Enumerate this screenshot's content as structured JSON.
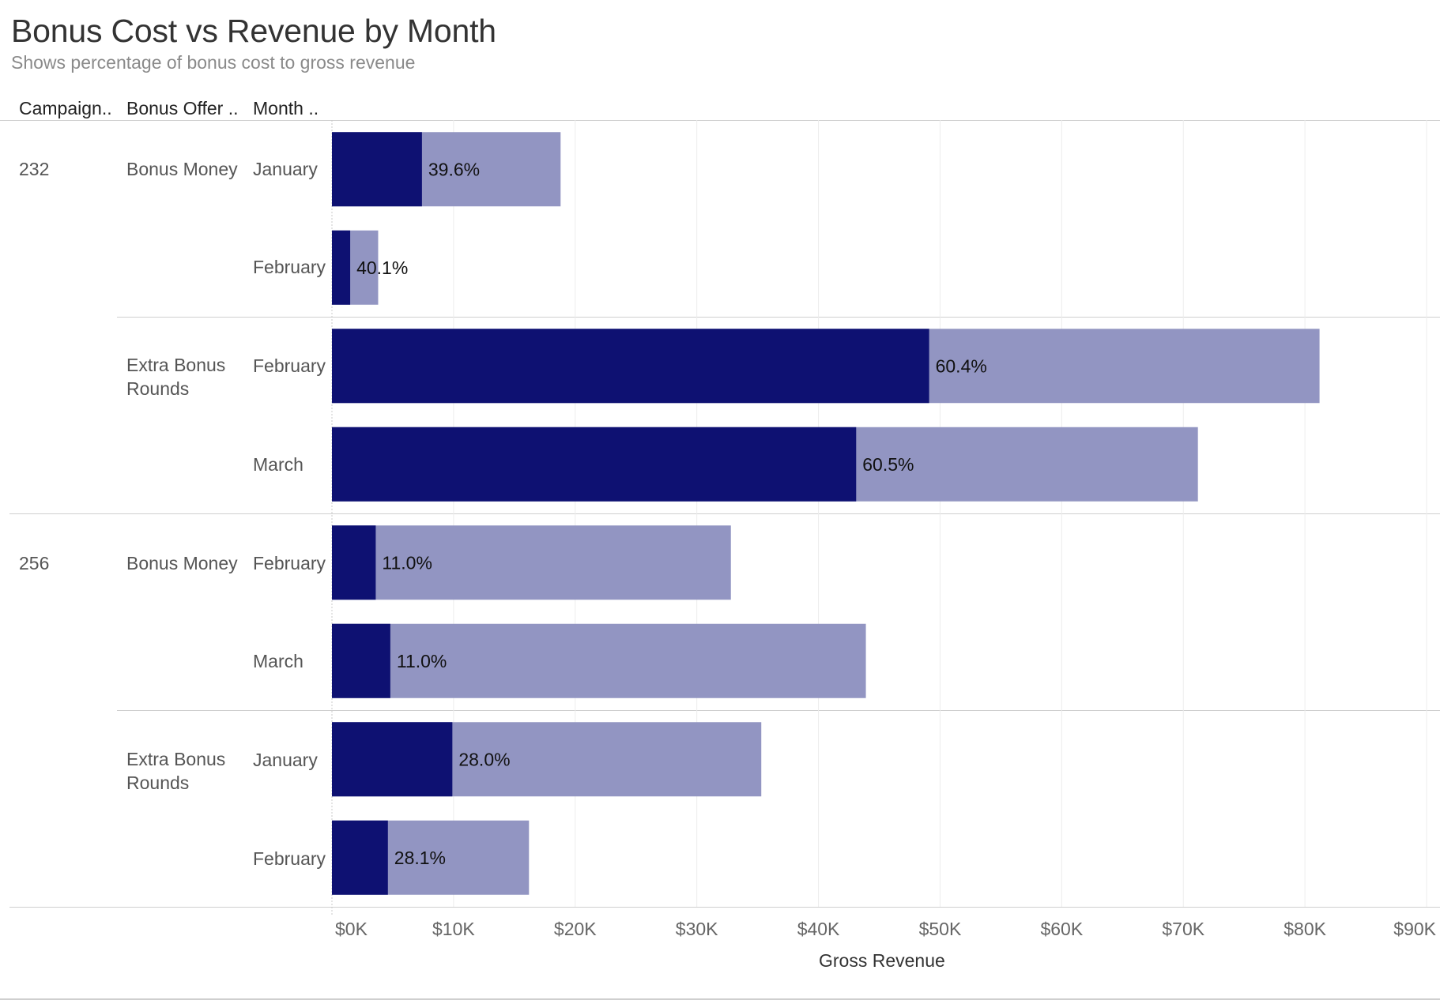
{
  "title": "Bonus Cost vs Revenue by Month",
  "subtitle": "Shows percentage of bonus cost to gross revenue",
  "headers": {
    "campaign": "Campaign..",
    "bonus_offer": "Bonus Offer ..",
    "month": "Month .."
  },
  "colors": {
    "bonus_cost": "#0e1172",
    "gross_revenue": "#9295c2",
    "grid": "#ececec",
    "rule": "#cfcfcf"
  },
  "chart_data": {
    "type": "bar",
    "orientation": "horizontal",
    "xlabel": "Gross Revenue",
    "xlim": [
      0,
      90000
    ],
    "x_ticks": [
      0,
      10000,
      20000,
      30000,
      40000,
      50000,
      60000,
      70000,
      80000,
      90000
    ],
    "x_tick_labels": [
      "$0K",
      "$10K",
      "$20K",
      "$30K",
      "$40K",
      "$50K",
      "$60K",
      "$70K",
      "$80K",
      "$90K"
    ],
    "grid": true,
    "rows": [
      {
        "campaign": "232",
        "bonus_offer": "Bonus Money",
        "month": "January",
        "gross_revenue": 18800,
        "bonus_cost": 7400,
        "label": "39.6%"
      },
      {
        "campaign": "232",
        "bonus_offer": "Bonus Money",
        "month": "February",
        "gross_revenue": 3800,
        "bonus_cost": 1500,
        "label": "40.1%"
      },
      {
        "campaign": "232",
        "bonus_offer": "Extra Bonus Rounds",
        "month": "February",
        "gross_revenue": 81200,
        "bonus_cost": 49100,
        "label": "60.4%"
      },
      {
        "campaign": "232",
        "bonus_offer": "Extra Bonus Rounds",
        "month": "March",
        "gross_revenue": 71200,
        "bonus_cost": 43100,
        "label": "60.5%"
      },
      {
        "campaign": "256",
        "bonus_offer": "Bonus Money",
        "month": "February",
        "gross_revenue": 32800,
        "bonus_cost": 3600,
        "label": "11.0%"
      },
      {
        "campaign": "256",
        "bonus_offer": "Bonus Money",
        "month": "March",
        "gross_revenue": 43900,
        "bonus_cost": 4800,
        "label": "11.0%"
      },
      {
        "campaign": "256",
        "bonus_offer": "Extra Bonus Rounds",
        "month": "January",
        "gross_revenue": 35300,
        "bonus_cost": 9900,
        "label": "28.0%"
      },
      {
        "campaign": "256",
        "bonus_offer": "Extra Bonus Rounds",
        "month": "February",
        "gross_revenue": 16200,
        "bonus_cost": 4600,
        "label": "28.1%"
      }
    ],
    "groups": [
      {
        "campaign": "232",
        "offers": [
          {
            "label": "Bonus Money"
          },
          {
            "label": "Extra Bonus\nRounds"
          }
        ]
      },
      {
        "campaign": "256",
        "offers": [
          {
            "label": "Bonus Money"
          },
          {
            "label": "Extra Bonus\nRounds"
          }
        ]
      }
    ]
  }
}
